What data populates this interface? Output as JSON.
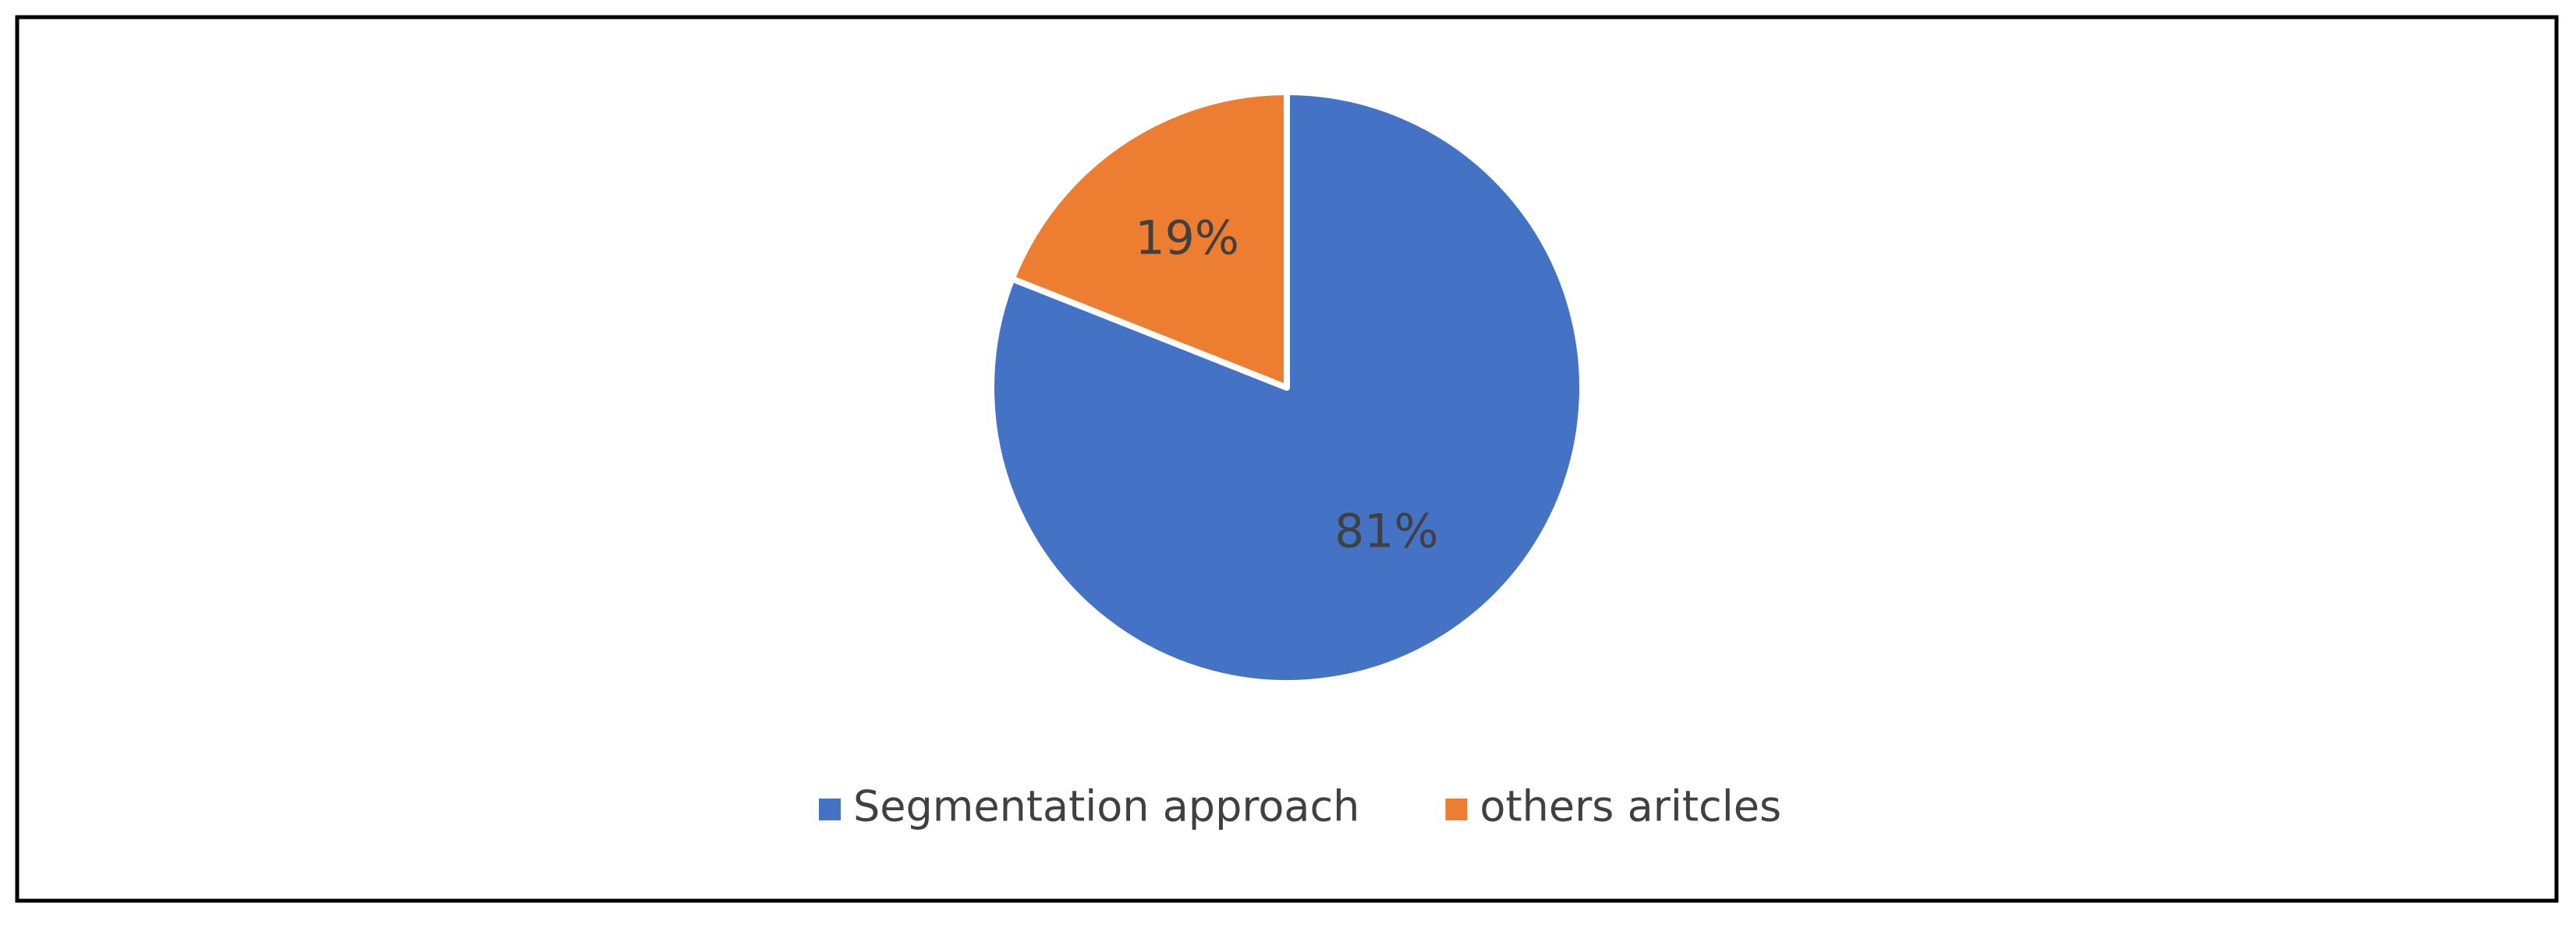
{
  "chart_data": {
    "type": "pie",
    "categories": [
      "Segmentation approach",
      "others aritcles"
    ],
    "values": [
      81,
      19
    ],
    "value_labels": [
      "81%",
      "19%"
    ],
    "colors": [
      "#4472c4",
      "#ed7d31"
    ],
    "legend": "bottom"
  }
}
